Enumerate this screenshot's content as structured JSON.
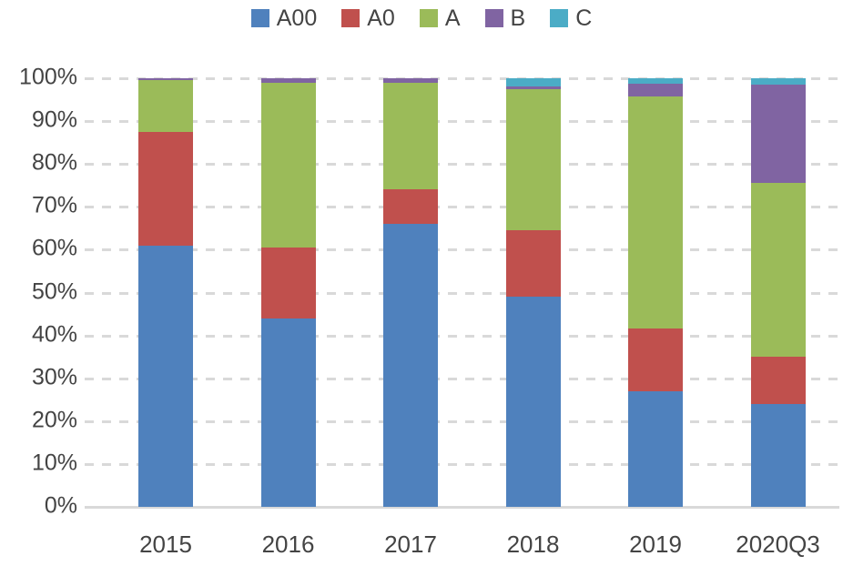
{
  "chart_data": {
    "type": "bar",
    "variant": "100%-stacked-column",
    "title": "",
    "xlabel": "",
    "ylabel": "",
    "ylim": [
      0,
      100
    ],
    "grid": "dashed-horizontal",
    "legend_position": "top-center",
    "categories": [
      "2015",
      "2016",
      "2017",
      "2018",
      "2019",
      "2020Q3"
    ],
    "y_ticks": [
      "100%",
      "90%",
      "80%",
      "70%",
      "60%",
      "50%",
      "40%",
      "30%",
      "20%",
      "10%",
      "0%"
    ],
    "series": [
      {
        "name": "A00",
        "color": "#4F81BD",
        "values": [
          61,
          44,
          66,
          49,
          27,
          24
        ]
      },
      {
        "name": "A0",
        "color": "#C0504D",
        "values": [
          26.5,
          16.5,
          8,
          15.5,
          14.7,
          11
        ]
      },
      {
        "name": "A",
        "color": "#9BBB59",
        "values": [
          12,
          38.5,
          25,
          33,
          54,
          40.5
        ]
      },
      {
        "name": "B",
        "color": "#8064A2",
        "values": [
          0.5,
          1,
          1,
          0.7,
          3,
          23
        ]
      },
      {
        "name": "C",
        "color": "#4BACC6",
        "values": [
          0,
          0,
          0,
          1.8,
          1.3,
          1.5
        ]
      }
    ],
    "colors": {
      "grid": "#D9D9D9",
      "axis_line": "#D9D9D9",
      "label_text": "#444444"
    }
  }
}
